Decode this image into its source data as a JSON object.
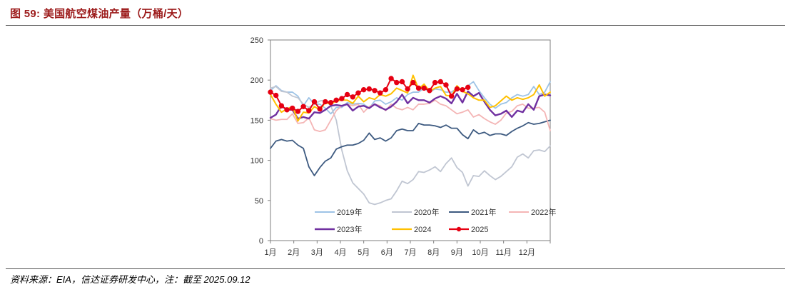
{
  "header": {
    "title": "图 59:  美国航空煤油产量（万桶/天）"
  },
  "footer": {
    "source": "资料来源：EIA，信达证券研发中心，注：截至 2025.09.12"
  },
  "chart_data": {
    "type": "line",
    "title": "美国航空煤油产量（万桶/天）",
    "xlabel": "",
    "ylabel": "",
    "ylim": [
      0,
      250
    ],
    "yticks": [
      0,
      50,
      100,
      150,
      200,
      250
    ],
    "xlim": [
      0,
      51
    ],
    "month_ticks": [
      "1月",
      "2月",
      "3月",
      "4月",
      "5月",
      "6月",
      "7月",
      "8月",
      "9月",
      "10月",
      "11月",
      "12月"
    ],
    "grid": false,
    "legend_position": "bottom-inside",
    "series": [
      {
        "name": "2019年",
        "color": "#9dc3e6",
        "marker": false,
        "width": 1.8,
        "values": [
          187,
          193,
          187,
          185,
          185,
          180,
          168,
          178,
          170,
          170,
          165,
          158,
          166,
          166,
          172,
          170,
          171,
          170,
          165,
          174,
          175,
          170,
          173,
          178,
          175,
          182,
          185,
          185,
          190,
          185,
          189,
          188,
          185,
          185,
          190,
          187,
          193,
          198,
          187,
          178,
          170,
          165,
          170,
          172,
          178,
          182,
          180,
          182,
          192,
          182,
          185,
          198
        ]
      },
      {
        "name": "2020年",
        "color": "#c0c6d2",
        "marker": false,
        "width": 1.8,
        "values": [
          190,
          192,
          186,
          185,
          180,
          178,
          170,
          166,
          170,
          174,
          175,
          168,
          150,
          113,
          87,
          72,
          65,
          58,
          47,
          45,
          47,
          50,
          52,
          62,
          74,
          71,
          76,
          86,
          85,
          88,
          92,
          86,
          96,
          103,
          91,
          85,
          68,
          81,
          80,
          87,
          81,
          76,
          80,
          86,
          92,
          104,
          108,
          103,
          112,
          113,
          111,
          118
        ]
      },
      {
        "name": "2021年",
        "color": "#3d5a80",
        "marker": false,
        "width": 1.8,
        "values": [
          115,
          124,
          126,
          124,
          125,
          119,
          115,
          92,
          81,
          91,
          99,
          103,
          114,
          117,
          119,
          119,
          121,
          125,
          134,
          126,
          128,
          124,
          128,
          137,
          139,
          137,
          137,
          146,
          144,
          144,
          143,
          141,
          144,
          140,
          140,
          132,
          127,
          138,
          133,
          135,
          131,
          133,
          133,
          131,
          136,
          140,
          143,
          147,
          145,
          146,
          148,
          150
        ]
      },
      {
        "name": "2022年",
        "color": "#f4b5b5",
        "marker": false,
        "width": 1.8,
        "values": [
          152,
          150,
          151,
          151,
          158,
          146,
          147,
          153,
          138,
          136,
          138,
          150,
          162,
          168,
          170,
          168,
          170,
          160,
          167,
          170,
          168,
          162,
          170,
          165,
          163,
          166,
          163,
          170,
          170,
          171,
          175,
          170,
          168,
          163,
          158,
          160,
          163,
          154,
          157,
          152,
          148,
          145,
          150,
          159,
          161,
          168,
          170,
          165,
          165,
          166,
          160,
          137
        ]
      },
      {
        "name": "2023年",
        "color": "#7030a0",
        "marker": false,
        "width": 2.4,
        "values": [
          153,
          157,
          168,
          163,
          163,
          152,
          154,
          152,
          160,
          159,
          163,
          168,
          169,
          168,
          170,
          162,
          167,
          168,
          165,
          170,
          166,
          163,
          167,
          173,
          182,
          171,
          178,
          175,
          175,
          172,
          177,
          180,
          177,
          171,
          183,
          172,
          186,
          180,
          184,
          173,
          163,
          156,
          158,
          162,
          154,
          162,
          160,
          170,
          163,
          180,
          182,
          181
        ]
      },
      {
        "name": "2024",
        "color": "#ffc000",
        "marker": false,
        "width": 2.0,
        "values": [
          182,
          170,
          160,
          164,
          167,
          149,
          160,
          159,
          167,
          163,
          172,
          170,
          174,
          175,
          175,
          171,
          180,
          173,
          178,
          176,
          182,
          180,
          183,
          190,
          187,
          184,
          206,
          189,
          195,
          186,
          190,
          192,
          181,
          180,
          193,
          186,
          183,
          178,
          175,
          175,
          166,
          168,
          174,
          180,
          175,
          178,
          176,
          178,
          182,
          194,
          180,
          185
        ]
      },
      {
        "name": "2025",
        "color": "#e60012",
        "marker": true,
        "width": 2.0,
        "values": [
          185,
          181,
          168,
          163,
          165,
          161,
          167,
          162,
          173,
          164,
          173,
          172,
          175,
          177,
          182,
          179,
          184,
          188,
          189,
          187,
          184,
          188,
          202,
          197,
          198,
          189,
          197,
          190,
          190,
          187,
          197,
          198,
          194,
          180,
          189,
          188,
          191,
          null,
          null,
          null,
          null,
          null,
          null,
          null,
          null,
          null,
          null,
          null,
          null,
          null,
          null,
          null
        ]
      }
    ]
  }
}
